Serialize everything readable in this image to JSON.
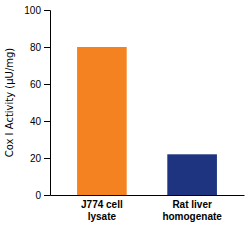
{
  "chart_data": {
    "type": "bar",
    "categories": [
      "J774 cell\nlysate",
      "Rat liver\nhomogenate"
    ],
    "values": [
      80,
      22
    ],
    "colors": [
      "#F58220",
      "#1F3480"
    ],
    "ylabel": "Cox I Activity (μU/mg)",
    "ylim": [
      0,
      100
    ],
    "yticks": [
      0,
      20,
      40,
      60,
      80,
      100
    ],
    "grid": false
  }
}
